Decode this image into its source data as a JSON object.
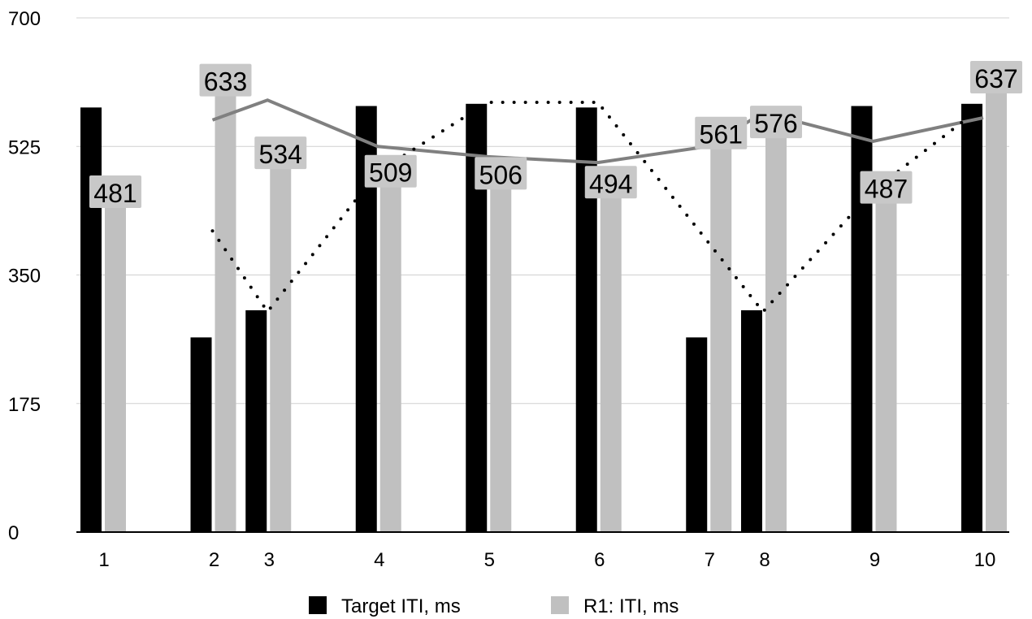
{
  "chart_data": {
    "type": "bar",
    "title": "",
    "xlabel": "",
    "ylabel": "",
    "ylim": [
      0,
      700
    ],
    "yticks": [
      0,
      175,
      350,
      525,
      700
    ],
    "categories": [
      "1",
      "2",
      "3",
      "4",
      "5",
      "6",
      "7",
      "8",
      "9",
      "10"
    ],
    "x": [
      1,
      2,
      2.5,
      3.5,
      4.5,
      5.5,
      6.5,
      7,
      8,
      9
    ],
    "grid": true,
    "legend": "bottom",
    "series": [
      {
        "name": "Target ITI, ms",
        "kind": "bar",
        "color": "#000000",
        "values": [
          578,
          265,
          302,
          580,
          583,
          578,
          265,
          302,
          580,
          583
        ]
      },
      {
        "name": "R1: ITI, ms",
        "kind": "bar",
        "color": "#c0c0c0",
        "values": [
          481,
          633,
          534,
          509,
          506,
          494,
          561,
          576,
          487,
          637
        ],
        "data_labels": [
          "481",
          "633",
          "534",
          "509",
          "506",
          "494",
          "561",
          "576",
          "487",
          "637"
        ]
      }
    ],
    "trendlines": [
      {
        "style": "solid",
        "color": "#808080",
        "points": [
          [
            2,
            561
          ],
          [
            2.5,
            588
          ],
          [
            3.5,
            525
          ],
          [
            4.5,
            511
          ],
          [
            5.5,
            503
          ],
          [
            6.5,
            525
          ],
          [
            7,
            571
          ],
          [
            8,
            532
          ],
          [
            9,
            564
          ]
        ]
      },
      {
        "style": "dotted",
        "color": "#000000",
        "points": [
          [
            2,
            410
          ],
          [
            2.5,
            300
          ],
          [
            3.5,
            490
          ],
          [
            4.5,
            585
          ],
          [
            5.5,
            585
          ],
          [
            7,
            300
          ],
          [
            8,
            465
          ],
          [
            9,
            580
          ]
        ]
      }
    ]
  }
}
